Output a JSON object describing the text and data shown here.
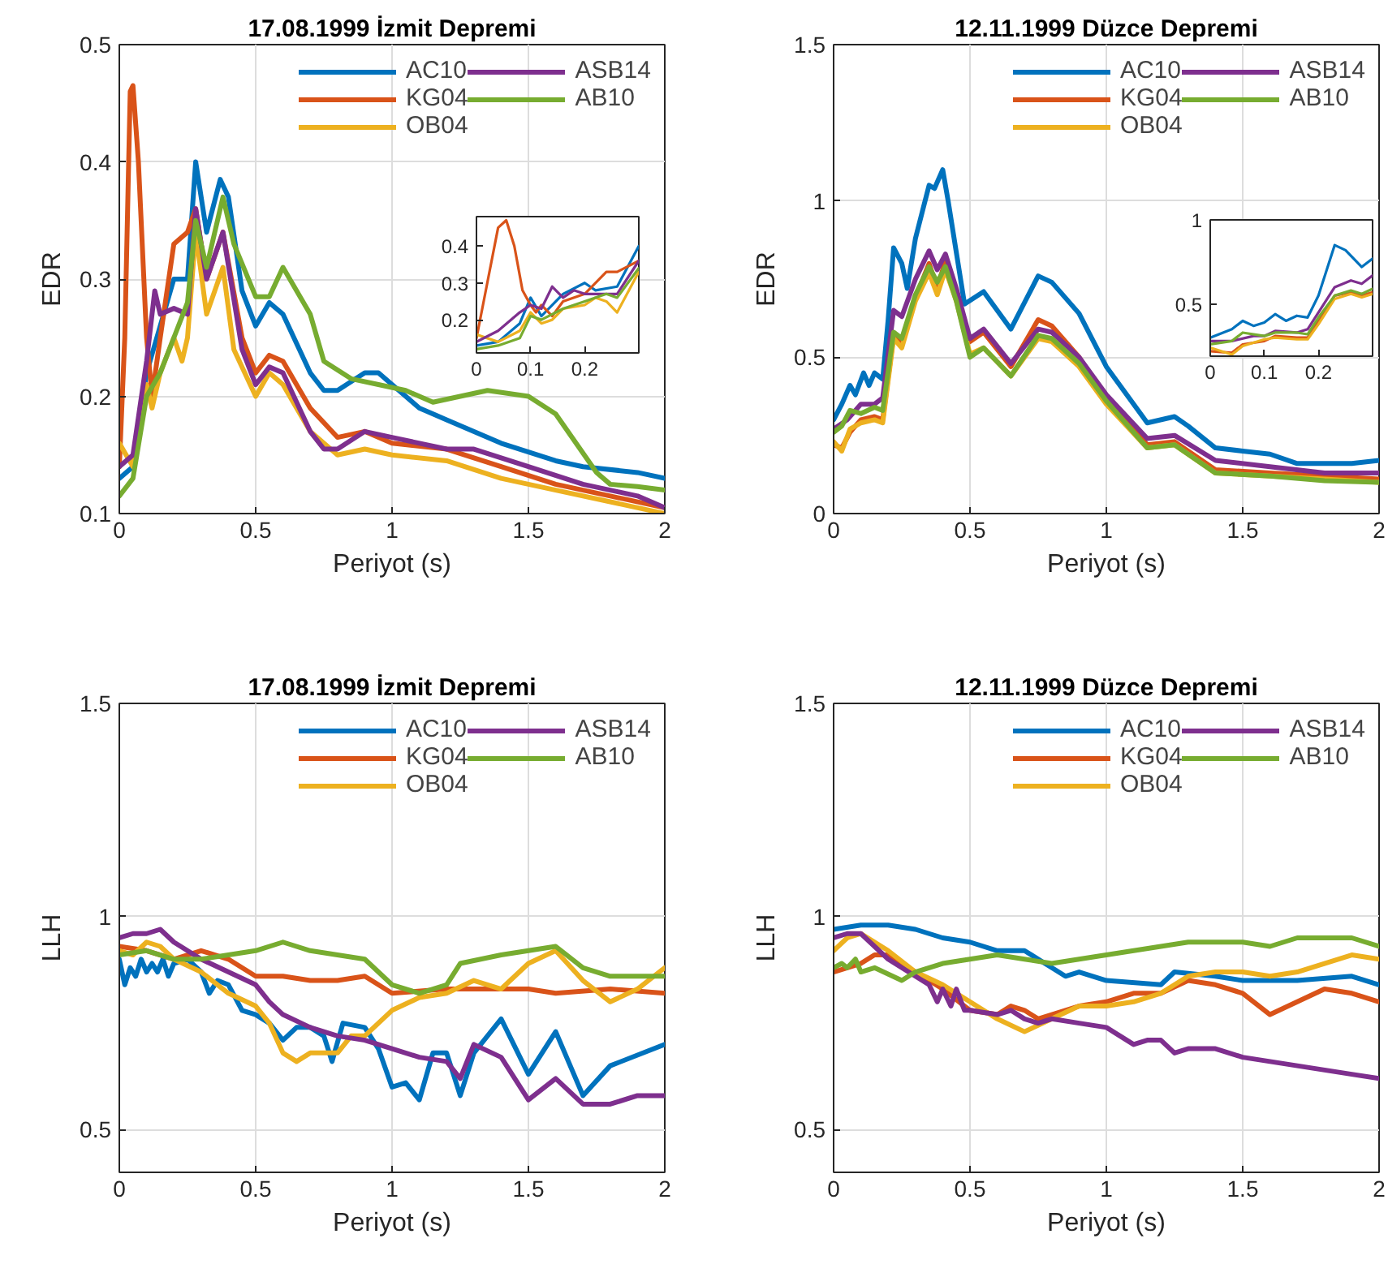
{
  "chart_data": [
    {
      "type": "line",
      "title": "17.08.1999 İzmit Depremi",
      "xlabel": "Periyot (s)",
      "ylabel": "EDR",
      "xlim": [
        0,
        2
      ],
      "ylim": [
        0.1,
        0.5
      ],
      "xticks": [
        0,
        0.5,
        1,
        1.5,
        2
      ],
      "yticks": [
        0.1,
        0.2,
        0.3,
        0.4,
        0.5
      ],
      "grid": true,
      "legend": "top right",
      "series": [
        {
          "name": "AC10",
          "color": "#0072bd",
          "x": [
            0,
            0.05,
            0.1,
            0.15,
            0.2,
            0.25,
            0.28,
            0.32,
            0.37,
            0.4,
            0.45,
            0.5,
            0.55,
            0.6,
            0.7,
            0.75,
            0.8,
            0.9,
            0.95,
            1.0,
            1.1,
            1.2,
            1.4,
            1.6,
            1.7,
            1.9,
            2.0
          ],
          "values": [
            0.13,
            0.14,
            0.22,
            0.26,
            0.3,
            0.3,
            0.4,
            0.34,
            0.385,
            0.37,
            0.29,
            0.26,
            0.28,
            0.27,
            0.22,
            0.205,
            0.205,
            0.22,
            0.22,
            0.21,
            0.19,
            0.18,
            0.16,
            0.145,
            0.14,
            0.135,
            0.13
          ]
        },
        {
          "name": "KG04",
          "color": "#d95319",
          "x": [
            0,
            0.02,
            0.04,
            0.05,
            0.07,
            0.1,
            0.12,
            0.15,
            0.2,
            0.25,
            0.28,
            0.32,
            0.38,
            0.45,
            0.5,
            0.55,
            0.6,
            0.7,
            0.8,
            0.9,
            1.0,
            1.2,
            1.4,
            1.6,
            1.8,
            2.0
          ],
          "values": [
            0.14,
            0.25,
            0.46,
            0.465,
            0.4,
            0.25,
            0.2,
            0.25,
            0.33,
            0.34,
            0.36,
            0.3,
            0.34,
            0.25,
            0.22,
            0.235,
            0.23,
            0.19,
            0.165,
            0.17,
            0.16,
            0.155,
            0.14,
            0.125,
            0.115,
            0.105
          ]
        },
        {
          "name": "OB04",
          "color": "#edb120",
          "x": [
            0,
            0.05,
            0.1,
            0.12,
            0.15,
            0.2,
            0.23,
            0.25,
            0.28,
            0.32,
            0.38,
            0.42,
            0.5,
            0.55,
            0.6,
            0.7,
            0.8,
            0.9,
            1.0,
            1.2,
            1.4,
            1.6,
            1.8,
            2.0
          ],
          "values": [
            0.16,
            0.14,
            0.21,
            0.19,
            0.22,
            0.25,
            0.23,
            0.25,
            0.34,
            0.27,
            0.31,
            0.24,
            0.2,
            0.22,
            0.21,
            0.17,
            0.15,
            0.155,
            0.15,
            0.145,
            0.13,
            0.12,
            0.11,
            0.1
          ]
        },
        {
          "name": "ASB14",
          "color": "#7e2f8e",
          "x": [
            0,
            0.05,
            0.1,
            0.13,
            0.15,
            0.2,
            0.25,
            0.28,
            0.32,
            0.38,
            0.45,
            0.5,
            0.55,
            0.6,
            0.7,
            0.75,
            0.8,
            0.9,
            1.0,
            1.2,
            1.3,
            1.5,
            1.7,
            1.9,
            2.0
          ],
          "values": [
            0.14,
            0.15,
            0.23,
            0.29,
            0.27,
            0.275,
            0.27,
            0.36,
            0.3,
            0.34,
            0.24,
            0.21,
            0.225,
            0.22,
            0.17,
            0.155,
            0.155,
            0.17,
            0.165,
            0.155,
            0.155,
            0.14,
            0.125,
            0.115,
            0.105
          ]
        },
        {
          "name": "AB10",
          "color": "#77ac30",
          "x": [
            0,
            0.05,
            0.1,
            0.15,
            0.2,
            0.25,
            0.28,
            0.32,
            0.38,
            0.42,
            0.5,
            0.55,
            0.6,
            0.7,
            0.75,
            0.85,
            0.95,
            1.05,
            1.15,
            1.25,
            1.35,
            1.5,
            1.6,
            1.75,
            1.8,
            1.9,
            2.0
          ],
          "values": [
            0.115,
            0.13,
            0.2,
            0.22,
            0.25,
            0.28,
            0.35,
            0.31,
            0.37,
            0.33,
            0.285,
            0.285,
            0.31,
            0.27,
            0.23,
            0.215,
            0.21,
            0.205,
            0.195,
            0.2,
            0.205,
            0.2,
            0.185,
            0.135,
            0.125,
            0.123,
            0.12
          ]
        }
      ]
    },
    {
      "type": "line",
      "title": "12.11.1999 Düzce Depremi",
      "xlabel": "Periyot (s)",
      "ylabel": "EDR",
      "xlim": [
        0,
        2
      ],
      "ylim": [
        0,
        1.5
      ],
      "xticks": [
        0,
        0.5,
        1,
        1.5,
        2
      ],
      "yticks": [
        0,
        0.5,
        1,
        1.5
      ],
      "grid": true,
      "legend": "top right",
      "series": [
        {
          "name": "AC10",
          "color": "#0072bd",
          "x": [
            0,
            0.03,
            0.06,
            0.08,
            0.11,
            0.13,
            0.15,
            0.18,
            0.2,
            0.22,
            0.25,
            0.27,
            0.3,
            0.35,
            0.37,
            0.4,
            0.42,
            0.48,
            0.55,
            0.65,
            0.75,
            0.8,
            0.9,
            1.0,
            1.15,
            1.25,
            1.3,
            1.4,
            1.5,
            1.6,
            1.7,
            1.8,
            1.9,
            2.0
          ],
          "values": [
            0.3,
            0.35,
            0.41,
            0.38,
            0.45,
            0.41,
            0.45,
            0.43,
            0.62,
            0.85,
            0.8,
            0.72,
            0.88,
            1.05,
            1.04,
            1.1,
            1.0,
            0.67,
            0.71,
            0.59,
            0.76,
            0.74,
            0.64,
            0.47,
            0.29,
            0.31,
            0.28,
            0.21,
            0.2,
            0.19,
            0.16,
            0.16,
            0.16,
            0.17
          ]
        },
        {
          "name": "KG04",
          "color": "#d95319",
          "x": [
            0,
            0.03,
            0.06,
            0.1,
            0.15,
            0.18,
            0.22,
            0.25,
            0.3,
            0.35,
            0.38,
            0.41,
            0.45,
            0.5,
            0.55,
            0.65,
            0.75,
            0.8,
            0.9,
            1.0,
            1.15,
            1.25,
            1.4,
            1.6,
            1.8,
            2.0
          ],
          "values": [
            0.22,
            0.21,
            0.26,
            0.3,
            0.31,
            0.3,
            0.57,
            0.55,
            0.69,
            0.8,
            0.72,
            0.81,
            0.7,
            0.55,
            0.58,
            0.47,
            0.62,
            0.6,
            0.5,
            0.37,
            0.22,
            0.23,
            0.14,
            0.13,
            0.12,
            0.11
          ]
        },
        {
          "name": "OB04",
          "color": "#edb120",
          "x": [
            0,
            0.03,
            0.06,
            0.1,
            0.15,
            0.18,
            0.22,
            0.25,
            0.3,
            0.35,
            0.38,
            0.41,
            0.45,
            0.5,
            0.55,
            0.65,
            0.75,
            0.8,
            0.9,
            1.0,
            1.15,
            1.25,
            1.4,
            1.6,
            1.8,
            2.0
          ],
          "values": [
            0.23,
            0.2,
            0.27,
            0.29,
            0.3,
            0.29,
            0.56,
            0.53,
            0.68,
            0.77,
            0.7,
            0.78,
            0.68,
            0.51,
            0.53,
            0.44,
            0.56,
            0.55,
            0.47,
            0.35,
            0.21,
            0.22,
            0.13,
            0.12,
            0.11,
            0.1
          ]
        },
        {
          "name": "ASB14",
          "color": "#7e2f8e",
          "x": [
            0,
            0.05,
            0.1,
            0.15,
            0.18,
            0.22,
            0.25,
            0.3,
            0.35,
            0.38,
            0.41,
            0.45,
            0.5,
            0.55,
            0.65,
            0.75,
            0.8,
            0.9,
            1.0,
            1.15,
            1.25,
            1.4,
            1.6,
            1.8,
            2.0
          ],
          "values": [
            0.27,
            0.3,
            0.35,
            0.35,
            0.37,
            0.65,
            0.63,
            0.75,
            0.84,
            0.78,
            0.83,
            0.72,
            0.56,
            0.59,
            0.48,
            0.59,
            0.58,
            0.5,
            0.38,
            0.24,
            0.25,
            0.17,
            0.15,
            0.13,
            0.13
          ]
        },
        {
          "name": "AB10",
          "color": "#77ac30",
          "x": [
            0,
            0.03,
            0.06,
            0.1,
            0.15,
            0.18,
            0.22,
            0.25,
            0.3,
            0.35,
            0.38,
            0.41,
            0.45,
            0.5,
            0.55,
            0.65,
            0.75,
            0.8,
            0.9,
            1.0,
            1.15,
            1.25,
            1.4,
            1.6,
            1.8,
            2.0
          ],
          "values": [
            0.26,
            0.28,
            0.33,
            0.32,
            0.34,
            0.33,
            0.58,
            0.56,
            0.7,
            0.79,
            0.74,
            0.79,
            0.68,
            0.5,
            0.53,
            0.44,
            0.57,
            0.56,
            0.48,
            0.36,
            0.21,
            0.22,
            0.13,
            0.12,
            0.105,
            0.1
          ]
        }
      ]
    },
    {
      "type": "line",
      "title": "17.08.1999 İzmit Depremi",
      "xlabel": "Periyot (s)",
      "ylabel": "LLH",
      "xlim": [
        0,
        2
      ],
      "ylim": [
        0.4,
        1.5
      ],
      "xticks": [
        0,
        0.5,
        1,
        1.5,
        2
      ],
      "yticks": [
        0.5,
        1,
        1.5
      ],
      "grid": true,
      "legend": "top right",
      "series": [
        {
          "name": "AC10",
          "color": "#0072bd",
          "x": [
            0,
            0.02,
            0.04,
            0.06,
            0.08,
            0.1,
            0.12,
            0.14,
            0.16,
            0.18,
            0.2,
            0.25,
            0.3,
            0.33,
            0.36,
            0.4,
            0.45,
            0.5,
            0.55,
            0.6,
            0.65,
            0.7,
            0.75,
            0.78,
            0.82,
            0.9,
            0.95,
            1.0,
            1.05,
            1.1,
            1.15,
            1.2,
            1.25,
            1.3,
            1.4,
            1.5,
            1.6,
            1.7,
            1.8,
            2.0
          ],
          "values": [
            0.9,
            0.84,
            0.88,
            0.86,
            0.9,
            0.87,
            0.89,
            0.87,
            0.9,
            0.86,
            0.89,
            0.9,
            0.87,
            0.82,
            0.85,
            0.84,
            0.78,
            0.77,
            0.75,
            0.71,
            0.74,
            0.74,
            0.72,
            0.66,
            0.75,
            0.74,
            0.69,
            0.6,
            0.61,
            0.57,
            0.68,
            0.68,
            0.58,
            0.68,
            0.76,
            0.63,
            0.73,
            0.58,
            0.65,
            0.7
          ]
        },
        {
          "name": "KG04",
          "color": "#d95319",
          "x": [
            0,
            0.1,
            0.2,
            0.3,
            0.4,
            0.5,
            0.6,
            0.7,
            0.8,
            0.9,
            1.0,
            1.2,
            1.3,
            1.5,
            1.6,
            1.8,
            2.0
          ],
          "values": [
            0.93,
            0.92,
            0.9,
            0.92,
            0.9,
            0.86,
            0.86,
            0.85,
            0.85,
            0.86,
            0.82,
            0.83,
            0.83,
            0.83,
            0.82,
            0.83,
            0.82
          ]
        },
        {
          "name": "OB04",
          "color": "#edb120",
          "x": [
            0,
            0.05,
            0.1,
            0.15,
            0.2,
            0.3,
            0.4,
            0.5,
            0.55,
            0.6,
            0.65,
            0.7,
            0.8,
            0.85,
            0.9,
            1.0,
            1.1,
            1.2,
            1.3,
            1.4,
            1.5,
            1.6,
            1.7,
            1.8,
            1.9,
            2.0
          ],
          "values": [
            0.92,
            0.91,
            0.94,
            0.93,
            0.9,
            0.87,
            0.82,
            0.79,
            0.75,
            0.68,
            0.66,
            0.68,
            0.68,
            0.72,
            0.72,
            0.78,
            0.81,
            0.82,
            0.85,
            0.83,
            0.89,
            0.92,
            0.85,
            0.8,
            0.83,
            0.88
          ]
        },
        {
          "name": "ASB14",
          "color": "#7e2f8e",
          "x": [
            0,
            0.05,
            0.1,
            0.15,
            0.2,
            0.25,
            0.3,
            0.4,
            0.5,
            0.55,
            0.6,
            0.7,
            0.8,
            0.9,
            1.0,
            1.1,
            1.2,
            1.25,
            1.3,
            1.4,
            1.5,
            1.6,
            1.7,
            1.8,
            1.9,
            2.0
          ],
          "values": [
            0.95,
            0.96,
            0.96,
            0.97,
            0.94,
            0.92,
            0.9,
            0.87,
            0.84,
            0.8,
            0.77,
            0.74,
            0.72,
            0.71,
            0.69,
            0.67,
            0.66,
            0.62,
            0.7,
            0.67,
            0.57,
            0.62,
            0.56,
            0.56,
            0.58,
            0.58
          ]
        },
        {
          "name": "AB10",
          "color": "#77ac30",
          "x": [
            0,
            0.1,
            0.2,
            0.3,
            0.4,
            0.5,
            0.6,
            0.7,
            0.8,
            0.9,
            1.0,
            1.1,
            1.2,
            1.25,
            1.4,
            1.5,
            1.6,
            1.7,
            1.8,
            2.0
          ],
          "values": [
            0.91,
            0.92,
            0.9,
            0.9,
            0.91,
            0.92,
            0.94,
            0.92,
            0.91,
            0.9,
            0.84,
            0.82,
            0.84,
            0.89,
            0.91,
            0.92,
            0.93,
            0.88,
            0.86,
            0.86
          ]
        }
      ]
    },
    {
      "type": "line",
      "title": "12.11.1999 Düzce Depremi",
      "xlabel": "Periyot (s)",
      "ylabel": "LLH",
      "xlim": [
        0,
        2
      ],
      "ylim": [
        0.4,
        1.5
      ],
      "xticks": [
        0,
        0.5,
        1,
        1.5,
        2
      ],
      "yticks": [
        0.5,
        1,
        1.5
      ],
      "grid": true,
      "legend": "top right",
      "series": [
        {
          "name": "AC10",
          "color": "#0072bd",
          "x": [
            0,
            0.1,
            0.2,
            0.3,
            0.4,
            0.5,
            0.6,
            0.7,
            0.8,
            0.85,
            0.9,
            1.0,
            1.2,
            1.25,
            1.4,
            1.5,
            1.7,
            1.9,
            2.0
          ],
          "values": [
            0.97,
            0.98,
            0.98,
            0.97,
            0.95,
            0.94,
            0.92,
            0.92,
            0.88,
            0.86,
            0.87,
            0.85,
            0.84,
            0.87,
            0.86,
            0.85,
            0.85,
            0.86,
            0.84
          ]
        },
        {
          "name": "KG04",
          "color": "#d95319",
          "x": [
            0,
            0.05,
            0.1,
            0.15,
            0.2,
            0.3,
            0.4,
            0.5,
            0.6,
            0.65,
            0.7,
            0.75,
            0.8,
            0.9,
            1.0,
            1.1,
            1.2,
            1.3,
            1.4,
            1.5,
            1.6,
            1.7,
            1.8,
            1.9,
            2.0
          ],
          "values": [
            0.87,
            0.88,
            0.89,
            0.91,
            0.91,
            0.87,
            0.83,
            0.78,
            0.77,
            0.79,
            0.78,
            0.76,
            0.77,
            0.79,
            0.8,
            0.82,
            0.82,
            0.85,
            0.84,
            0.82,
            0.77,
            0.8,
            0.83,
            0.82,
            0.8
          ]
        },
        {
          "name": "OB04",
          "color": "#edb120",
          "x": [
            0,
            0.05,
            0.1,
            0.2,
            0.3,
            0.4,
            0.5,
            0.6,
            0.7,
            0.8,
            0.9,
            1.0,
            1.1,
            1.2,
            1.3,
            1.4,
            1.5,
            1.6,
            1.7,
            1.8,
            1.9,
            2.0
          ],
          "values": [
            0.92,
            0.95,
            0.96,
            0.92,
            0.87,
            0.84,
            0.8,
            0.76,
            0.73,
            0.76,
            0.79,
            0.79,
            0.8,
            0.82,
            0.86,
            0.87,
            0.87,
            0.86,
            0.87,
            0.89,
            0.91,
            0.9
          ]
        },
        {
          "name": "ASB14",
          "color": "#7e2f8e",
          "x": [
            0,
            0.05,
            0.1,
            0.15,
            0.2,
            0.3,
            0.35,
            0.38,
            0.4,
            0.43,
            0.45,
            0.48,
            0.5,
            0.6,
            0.65,
            0.7,
            0.75,
            0.8,
            0.9,
            1.0,
            1.05,
            1.1,
            1.15,
            1.2,
            1.25,
            1.3,
            1.4,
            1.5,
            1.6,
            1.7,
            1.8,
            1.9,
            2.0
          ],
          "values": [
            0.95,
            0.96,
            0.96,
            0.93,
            0.9,
            0.86,
            0.84,
            0.8,
            0.83,
            0.79,
            0.83,
            0.78,
            0.78,
            0.77,
            0.78,
            0.76,
            0.75,
            0.76,
            0.75,
            0.74,
            0.72,
            0.7,
            0.71,
            0.71,
            0.68,
            0.69,
            0.69,
            0.67,
            0.66,
            0.65,
            0.64,
            0.63,
            0.62
          ]
        },
        {
          "name": "AB10",
          "color": "#77ac30",
          "x": [
            0,
            0.03,
            0.05,
            0.08,
            0.1,
            0.15,
            0.25,
            0.3,
            0.4,
            0.5,
            0.6,
            0.7,
            0.8,
            0.9,
            1.0,
            1.2,
            1.3,
            1.4,
            1.5,
            1.6,
            1.7,
            1.8,
            1.9,
            2.0
          ],
          "values": [
            0.88,
            0.89,
            0.88,
            0.9,
            0.87,
            0.88,
            0.85,
            0.87,
            0.89,
            0.9,
            0.91,
            0.9,
            0.89,
            0.9,
            0.91,
            0.93,
            0.94,
            0.94,
            0.94,
            0.93,
            0.95,
            0.95,
            0.95,
            0.93
          ]
        }
      ]
    },
    {
      "type": "line",
      "xlim": [
        0,
        0.3
      ],
      "ylim": [
        0.11,
        0.48
      ],
      "xticks": [
        0,
        0.1,
        0.2
      ],
      "yticks": [
        0.2,
        0.3,
        0.4
      ],
      "series": [
        {
          "color": "#0072bd",
          "x": [
            0,
            0.04,
            0.08,
            0.1,
            0.12,
            0.16,
            0.2,
            0.22,
            0.26,
            0.3
          ],
          "values": [
            0.13,
            0.14,
            0.19,
            0.26,
            0.21,
            0.27,
            0.3,
            0.28,
            0.29,
            0.4
          ]
        },
        {
          "color": "#d95319",
          "x": [
            0,
            0.02,
            0.04,
            0.055,
            0.07,
            0.085,
            0.1,
            0.11,
            0.12,
            0.14,
            0.16,
            0.2,
            0.24,
            0.26,
            0.3
          ],
          "values": [
            0.15,
            0.3,
            0.45,
            0.47,
            0.4,
            0.28,
            0.24,
            0.22,
            0.24,
            0.21,
            0.25,
            0.27,
            0.33,
            0.33,
            0.36
          ]
        },
        {
          "color": "#edb120",
          "x": [
            0,
            0.04,
            0.08,
            0.1,
            0.12,
            0.14,
            0.16,
            0.2,
            0.22,
            0.24,
            0.26,
            0.3
          ],
          "values": [
            0.16,
            0.14,
            0.17,
            0.22,
            0.19,
            0.2,
            0.23,
            0.24,
            0.26,
            0.25,
            0.22,
            0.33
          ]
        },
        {
          "color": "#7e2f8e",
          "x": [
            0,
            0.04,
            0.08,
            0.1,
            0.12,
            0.14,
            0.16,
            0.18,
            0.2,
            0.26,
            0.3
          ],
          "values": [
            0.14,
            0.17,
            0.22,
            0.24,
            0.23,
            0.29,
            0.26,
            0.28,
            0.27,
            0.27,
            0.36
          ]
        },
        {
          "color": "#77ac30",
          "x": [
            0,
            0.04,
            0.08,
            0.1,
            0.12,
            0.16,
            0.2,
            0.24,
            0.26,
            0.3
          ],
          "values": [
            0.12,
            0.13,
            0.15,
            0.21,
            0.2,
            0.23,
            0.25,
            0.27,
            0.26,
            0.34
          ]
        }
      ]
    },
    {
      "type": "line",
      "xlim": [
        0,
        0.3
      ],
      "ylim": [
        0.19,
        1
      ],
      "xticks": [
        0,
        0.1,
        0.2
      ],
      "yticks": [
        0.5,
        1
      ],
      "series": [
        {
          "color": "#0072bd",
          "x": [
            0,
            0.04,
            0.06,
            0.08,
            0.1,
            0.12,
            0.14,
            0.16,
            0.18,
            0.2,
            0.23,
            0.25,
            0.28,
            0.3
          ],
          "values": [
            0.3,
            0.35,
            0.4,
            0.37,
            0.39,
            0.44,
            0.4,
            0.43,
            0.42,
            0.55,
            0.85,
            0.82,
            0.72,
            0.77
          ]
        },
        {
          "color": "#d95319",
          "x": [
            0,
            0.04,
            0.06,
            0.1,
            0.12,
            0.16,
            0.18,
            0.2,
            0.23,
            0.26,
            0.28,
            0.3
          ],
          "values": [
            0.22,
            0.21,
            0.26,
            0.28,
            0.31,
            0.3,
            0.3,
            0.4,
            0.55,
            0.57,
            0.55,
            0.57
          ]
        },
        {
          "color": "#edb120",
          "x": [
            0,
            0.04,
            0.06,
            0.1,
            0.12,
            0.16,
            0.18,
            0.2,
            0.23,
            0.26,
            0.28,
            0.3
          ],
          "values": [
            0.24,
            0.2,
            0.25,
            0.29,
            0.3,
            0.29,
            0.29,
            0.38,
            0.53,
            0.56,
            0.54,
            0.56
          ]
        },
        {
          "color": "#7e2f8e",
          "x": [
            0,
            0.04,
            0.08,
            0.1,
            0.12,
            0.16,
            0.18,
            0.2,
            0.23,
            0.26,
            0.28,
            0.3
          ],
          "values": [
            0.28,
            0.28,
            0.31,
            0.31,
            0.34,
            0.33,
            0.35,
            0.45,
            0.6,
            0.64,
            0.62,
            0.67
          ]
        },
        {
          "color": "#77ac30",
          "x": [
            0,
            0.04,
            0.06,
            0.1,
            0.12,
            0.16,
            0.18,
            0.2,
            0.23,
            0.26,
            0.28,
            0.3
          ],
          "values": [
            0.26,
            0.28,
            0.33,
            0.31,
            0.33,
            0.33,
            0.32,
            0.42,
            0.55,
            0.58,
            0.56,
            0.59
          ]
        }
      ]
    }
  ]
}
